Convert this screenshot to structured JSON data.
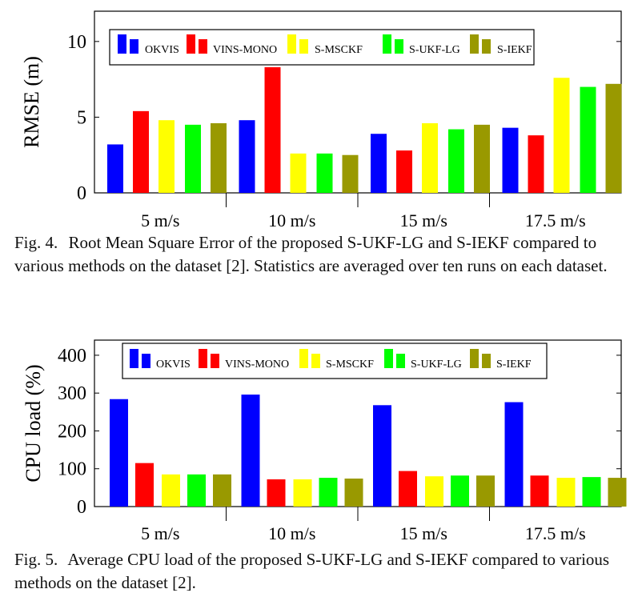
{
  "chart_data": [
    {
      "type": "bar",
      "ylabel": "RMSE (m)",
      "ylim": [
        0,
        12
      ],
      "yticks": [
        0,
        5,
        10
      ],
      "categories": [
        "5 m/s",
        "10 m/s",
        "15 m/s",
        "17.5 m/s"
      ],
      "legend_position": "top",
      "series": [
        {
          "name": "OKVIS",
          "color": "#0000ff",
          "values": [
            3.2,
            4.8,
            3.9,
            4.3
          ]
        },
        {
          "name": "VINS-MONO",
          "color": "#ff0000",
          "values": [
            5.4,
            8.3,
            2.8,
            3.8
          ]
        },
        {
          "name": "S-MSCKF",
          "color": "#ffff00",
          "values": [
            4.8,
            2.6,
            4.6,
            7.6
          ]
        },
        {
          "name": "S-UKF-LG",
          "color": "#00ff00",
          "values": [
            4.5,
            2.6,
            4.2,
            7.0
          ]
        },
        {
          "name": "S-IEKF",
          "color": "#999900",
          "values": [
            4.6,
            2.5,
            4.5,
            7.2
          ]
        }
      ],
      "caption_label": "Fig. 4.",
      "caption_text": "Root Mean Square Error of the proposed S-UKF-LG and S-IEKF compared to various methods on the dataset [2]. Statistics are averaged over ten runs on each dataset."
    },
    {
      "type": "bar",
      "ylabel": "CPU load (%)",
      "ylim": [
        0,
        440
      ],
      "yticks": [
        0,
        100,
        200,
        300,
        400
      ],
      "categories": [
        "5 m/s",
        "10 m/s",
        "15 m/s",
        "17.5 m/s"
      ],
      "legend_position": "top",
      "series": [
        {
          "name": "OKVIS",
          "color": "#0000ff",
          "values": [
            284,
            296,
            268,
            276
          ]
        },
        {
          "name": "VINS-MONO",
          "color": "#ff0000",
          "values": [
            115,
            72,
            94,
            82
          ]
        },
        {
          "name": "S-MSCKF",
          "color": "#ffff00",
          "values": [
            85,
            72,
            80,
            76
          ]
        },
        {
          "name": "S-UKF-LG",
          "color": "#00ff00",
          "values": [
            85,
            76,
            82,
            78
          ]
        },
        {
          "name": "S-IEKF",
          "color": "#999900",
          "values": [
            85,
            74,
            82,
            76
          ]
        }
      ],
      "caption_label": "Fig. 5.",
      "caption_text": "Average CPU load of the proposed S-UKF-LG and S-IEKF compared to various methods on the dataset [2]."
    }
  ]
}
